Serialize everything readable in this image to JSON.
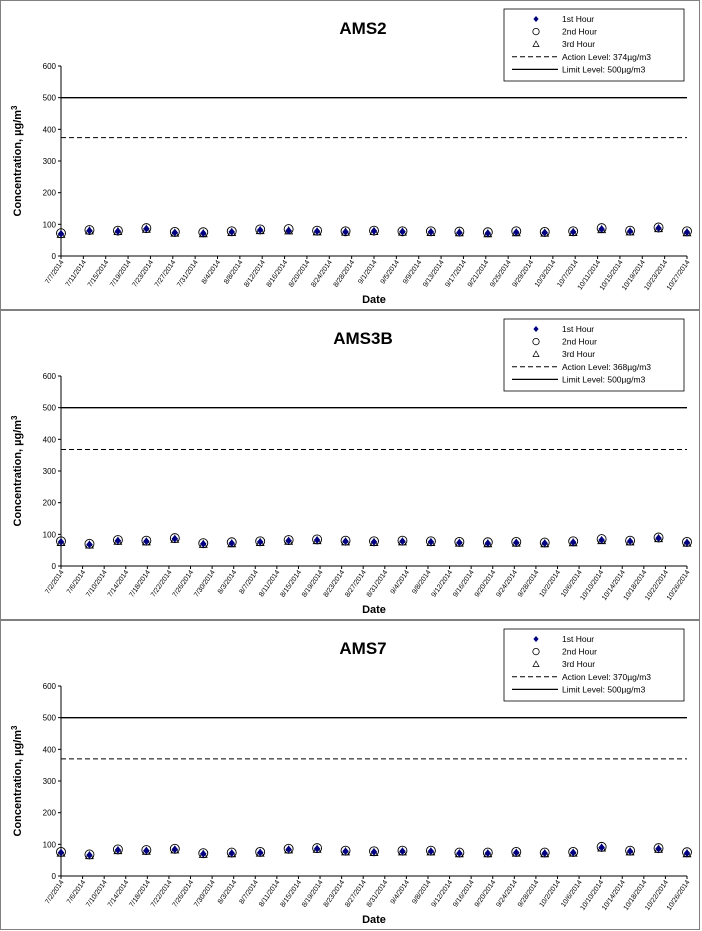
{
  "chart_data": [
    {
      "type": "scatter",
      "title": "AMS2",
      "xlabel": "Date",
      "ylabel": "Concentration,  µg/m³",
      "ylim": [
        0,
        600
      ],
      "yticks": [
        "0",
        "100",
        "200",
        "300",
        "400",
        "500",
        "600"
      ],
      "grid": false,
      "legend_position": "top-right",
      "x": [
        "7/7/2014",
        "7/11/2014",
        "7/15/2014",
        "7/19/2014",
        "7/23/2014",
        "7/27/2014",
        "7/31/2014",
        "8/4/2014",
        "8/8/2014",
        "8/12/2014",
        "8/16/2014",
        "8/20/2014",
        "8/24/2014",
        "8/28/2014",
        "9/1/2014",
        "9/5/2014",
        "9/9/2014",
        "9/13/2014",
        "9/17/2014",
        "9/21/2014",
        "9/25/2014",
        "9/29/2014",
        "10/3/2014",
        "10/7/2014",
        "10/11/2014",
        "10/15/2014",
        "10/19/2014",
        "10/23/2014",
        "10/27/2014"
      ],
      "series": [
        {
          "name": "1st Hour",
          "marker": "diamond",
          "color": "#000080",
          "values": [
            70,
            80,
            78,
            86,
            74,
            72,
            76,
            82,
            80,
            78,
            76,
            79,
            77,
            76,
            74,
            72,
            75,
            74,
            76,
            85,
            78,
            88,
            75
          ]
        },
        {
          "name": "2nd Hour",
          "marker": "circle",
          "color": "#000000",
          "values": [
            72,
            82,
            80,
            88,
            76,
            75,
            78,
            84,
            85,
            80,
            78,
            80,
            78,
            78,
            77,
            75,
            78,
            76,
            78,
            88,
            80,
            90,
            78
          ]
        },
        {
          "name": "3rd Hour",
          "marker": "triangle",
          "color": "#000000",
          "values": [
            68,
            79,
            77,
            84,
            72,
            70,
            74,
            80,
            79,
            76,
            75,
            77,
            75,
            74,
            73,
            70,
            73,
            72,
            74,
            83,
            76,
            86,
            73
          ]
        }
      ],
      "action_level": {
        "label": "Action Level: 374µg/m3",
        "value": 374
      },
      "limit_level": {
        "label": "Limit Level: 500µg/m3",
        "value": 500
      }
    },
    {
      "type": "scatter",
      "title": "AMS3B",
      "xlabel": "Date",
      "ylabel": "Concentration,  µg/m³",
      "ylim": [
        0,
        600
      ],
      "yticks": [
        "0",
        "100",
        "200",
        "300",
        "400",
        "500",
        "600"
      ],
      "grid": false,
      "legend_position": "top-right",
      "x": [
        "7/2/2014",
        "7/6/2014",
        "7/10/2014",
        "7/14/2014",
        "7/18/2014",
        "7/22/2014",
        "7/26/2014",
        "7/30/2014",
        "8/3/2014",
        "8/7/2014",
        "8/11/2014",
        "8/15/2014",
        "8/19/2014",
        "8/23/2014",
        "8/27/2014",
        "8/31/2014",
        "9/4/2014",
        "9/8/2014",
        "9/12/2014",
        "9/16/2014",
        "9/20/2014",
        "9/24/2014",
        "9/28/2014",
        "10/2/2014",
        "10/6/2014",
        "10/10/2014",
        "10/14/2014",
        "10/18/2014",
        "10/22/2014",
        "10/26/2014"
      ],
      "series": [
        {
          "name": "1st Hour",
          "marker": "diamond",
          "color": "#000080",
          "values": [
            76,
            68,
            80,
            78,
            86,
            70,
            72,
            76,
            80,
            82,
            78,
            76,
            78,
            76,
            74,
            72,
            74,
            72,
            75,
            82,
            78,
            88,
            74
          ]
        },
        {
          "name": "2nd Hour",
          "marker": "circle",
          "color": "#000000",
          "values": [
            78,
            70,
            82,
            80,
            88,
            72,
            75,
            78,
            82,
            84,
            80,
            78,
            80,
            78,
            76,
            75,
            76,
            74,
            78,
            85,
            80,
            90,
            76
          ]
        },
        {
          "name": "3rd Hour",
          "marker": "triangle",
          "color": "#000000",
          "values": [
            74,
            66,
            78,
            76,
            84,
            68,
            70,
            74,
            78,
            80,
            76,
            74,
            76,
            74,
            72,
            70,
            72,
            70,
            73,
            80,
            76,
            86,
            72
          ]
        }
      ],
      "action_level": {
        "label": "Action Level: 368µg/m3",
        "value": 368
      },
      "limit_level": {
        "label": "Limit Level: 500µg/m3",
        "value": 500
      }
    },
    {
      "type": "scatter",
      "title": "AMS7",
      "xlabel": "Date",
      "ylabel": "Concentration,  µg/m³",
      "ylim": [
        0,
        600
      ],
      "yticks": [
        "0",
        "100",
        "200",
        "300",
        "400",
        "500",
        "600"
      ],
      "grid": false,
      "legend_position": "top-right",
      "x": [
        "7/2/2014",
        "7/6/2014",
        "7/10/2014",
        "7/14/2014",
        "7/18/2014",
        "7/22/2014",
        "7/26/2014",
        "7/30/2014",
        "8/3/2014",
        "8/7/2014",
        "8/11/2014",
        "8/15/2014",
        "8/19/2014",
        "8/23/2014",
        "8/27/2014",
        "8/31/2014",
        "9/4/2014",
        "9/8/2014",
        "9/12/2014",
        "9/16/2014",
        "9/20/2014",
        "9/24/2014",
        "9/28/2014",
        "10/2/2014",
        "10/6/2014",
        "10/10/2014",
        "10/14/2014",
        "10/18/2014",
        "10/22/2014",
        "10/26/2014"
      ],
      "series": [
        {
          "name": "1st Hour",
          "marker": "diamond",
          "color": "#000080",
          "values": [
            74,
            66,
            82,
            80,
            84,
            70,
            72,
            74,
            84,
            86,
            78,
            76,
            78,
            78,
            72,
            72,
            74,
            72,
            74,
            90,
            78,
            86,
            72
          ]
        },
        {
          "name": "2nd Hour",
          "marker": "circle",
          "color": "#000000",
          "values": [
            76,
            68,
            84,
            82,
            86,
            72,
            74,
            76,
            86,
            88,
            80,
            78,
            80,
            80,
            74,
            74,
            76,
            74,
            76,
            92,
            80,
            88,
            75
          ]
        },
        {
          "name": "3rd Hour",
          "marker": "triangle",
          "color": "#000000",
          "values": [
            72,
            64,
            80,
            78,
            82,
            68,
            70,
            72,
            82,
            84,
            76,
            74,
            76,
            76,
            70,
            70,
            72,
            70,
            72,
            88,
            76,
            84,
            70
          ]
        }
      ],
      "action_level": {
        "label": "Action Level: 370µg/m3",
        "value": 370
      },
      "limit_level": {
        "label": "Limit Level: 500µg/m3",
        "value": 500
      }
    }
  ]
}
